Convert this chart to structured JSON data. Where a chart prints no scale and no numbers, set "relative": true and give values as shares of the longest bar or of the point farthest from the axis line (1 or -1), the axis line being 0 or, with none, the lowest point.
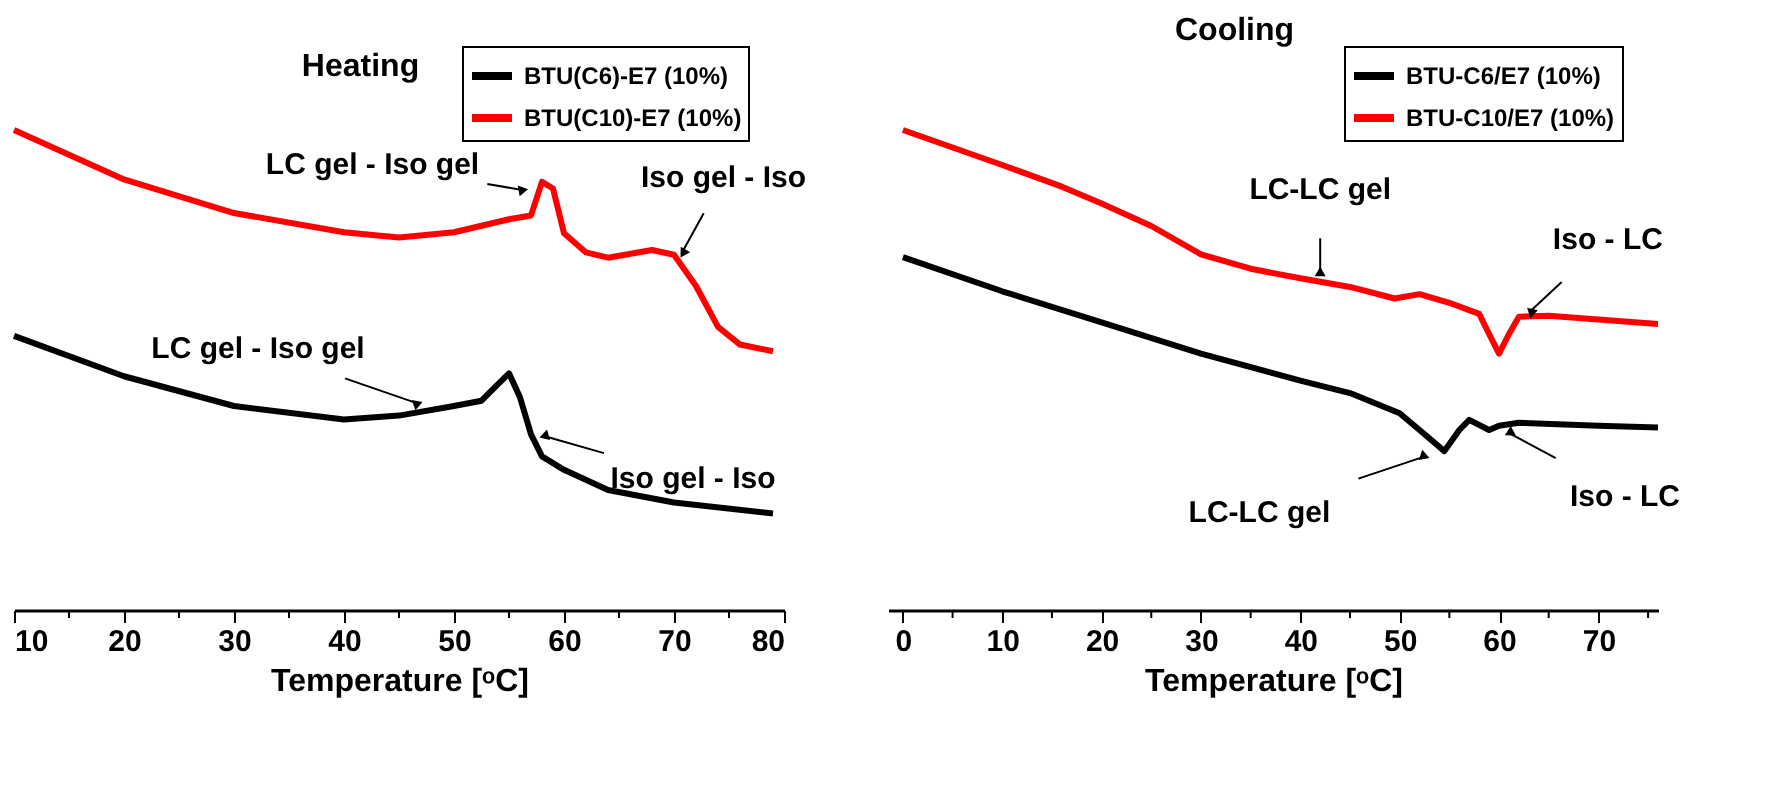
{
  "chart_data": [
    {
      "type": "line",
      "title": "Heating",
      "xlabel": "Temperature [ᵒC]",
      "relative": true,
      "legend": "top right",
      "xlim": [
        10,
        80
      ],
      "xticks": [
        10,
        {
          "value": 15,
          "label": null
        },
        20,
        {
          "value": 25,
          "label": null
        },
        30,
        {
          "value": 35,
          "label": null
        },
        40,
        {
          "value": 45,
          "label": null
        },
        50,
        {
          "value": 55,
          "label": null
        },
        60,
        {
          "value": 65,
          "label": null
        },
        70,
        {
          "value": 75,
          "label": null
        },
        80
      ],
      "series": [
        {
          "name": "BTU(C6)-E7 (10%)",
          "color": "#000000",
          "x": [
            10,
            20,
            30,
            40,
            45,
            50,
            52.5,
            53.5,
            55,
            56,
            57,
            58,
            60,
            64,
            70,
            79
          ],
          "values": [
            0.571,
            0.487,
            0.425,
            0.397,
            0.405,
            0.425,
            0.436,
            0.459,
            0.493,
            0.443,
            0.366,
            0.32,
            0.292,
            0.25,
            0.224,
            0.201
          ]
        },
        {
          "name": "BTU(C10)-E7 (10%)",
          "color": "#ff0000",
          "x": [
            10,
            20,
            30,
            40,
            45,
            50,
            55,
            57,
            58,
            59,
            60,
            62,
            64,
            68,
            70,
            72,
            74,
            76,
            79
          ],
          "values": [
            1.0,
            0.897,
            0.827,
            0.787,
            0.776,
            0.787,
            0.814,
            0.822,
            0.892,
            0.878,
            0.785,
            0.745,
            0.734,
            0.75,
            0.74,
            0.675,
            0.59,
            0.553,
            0.539
          ]
        }
      ],
      "annotations": [
        {
          "text": "LC gel - Iso gel",
          "x": 57.5,
          "y": 0.87
        },
        {
          "text": "Iso gel - Iso",
          "x": 70.5,
          "y": 0.735
        },
        {
          "text": "LC gel - Iso gel",
          "x": 48,
          "y": 0.42
        },
        {
          "text": "Iso gel - Iso",
          "x": 57,
          "y": 0.37
        }
      ]
    },
    {
      "type": "line",
      "title": "Cooling",
      "xlabel": "Temperature [ᵒC]",
      "relative": true,
      "legend": "top right",
      "xlim": [
        -1.5,
        76
      ],
      "xticks": [
        0,
        {
          "value": 5,
          "label": null
        },
        10,
        {
          "value": 15,
          "label": null
        },
        20,
        {
          "value": 25,
          "label": null
        },
        30,
        {
          "value": 35,
          "label": null
        },
        40,
        {
          "value": 45,
          "label": null
        },
        50,
        {
          "value": 55,
          "label": null
        },
        60,
        {
          "value": 65,
          "label": null
        },
        70,
        {
          "value": 75,
          "label": null
        }
      ],
      "series": [
        {
          "name": "BTU-C6/E7 (10%)",
          "color": "#000000",
          "x": [
            0,
            10,
            20,
            30,
            40,
            45,
            50,
            52,
            54.5,
            56,
            57,
            59,
            60,
            62,
            70,
            76
          ],
          "values": [
            0.735,
            0.664,
            0.599,
            0.534,
            0.478,
            0.452,
            0.41,
            0.375,
            0.331,
            0.375,
            0.396,
            0.375,
            0.384,
            0.39,
            0.384,
            0.38
          ]
        },
        {
          "name": "BTU-C10/E7 (10%)",
          "color": "#ff0000",
          "x": [
            0,
            10,
            16,
            20,
            25,
            30,
            35,
            40,
            45,
            49.5,
            52,
            55,
            58,
            59,
            60,
            61,
            62,
            65,
            70,
            76
          ],
          "values": [
            1.0,
            0.927,
            0.882,
            0.847,
            0.8,
            0.741,
            0.711,
            0.691,
            0.673,
            0.649,
            0.658,
            0.64,
            0.617,
            0.575,
            0.534,
            0.575,
            0.611,
            0.613,
            0.605,
            0.596
          ]
        }
      ],
      "annotations": [
        {
          "text": "LC-LC gel",
          "x": 42,
          "y": 0.69
        },
        {
          "text": "Iso - LC",
          "x": 62.5,
          "y": 0.61
        },
        {
          "text": "LC-LC gel",
          "x": 54,
          "y": 0.33
        },
        {
          "text": "Iso - LC",
          "x": 60,
          "y": 0.38
        }
      ]
    }
  ]
}
